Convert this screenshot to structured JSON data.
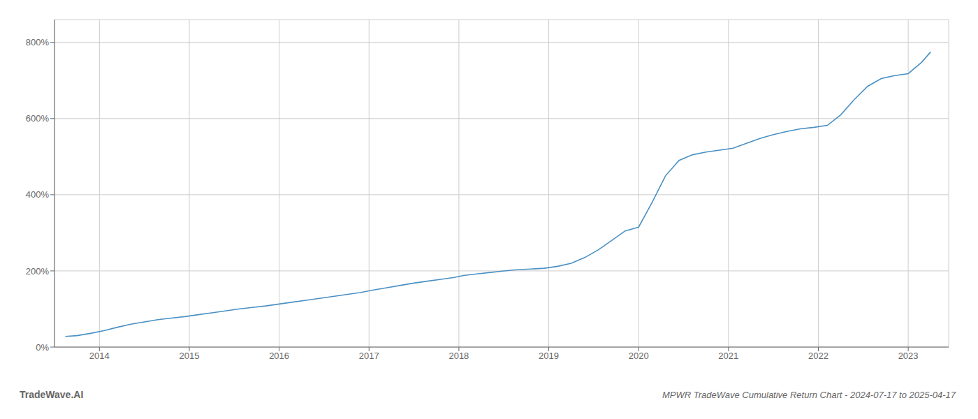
{
  "chart_data": {
    "type": "line",
    "title": "MPWR TradeWave Cumulative Return Chart - 2024-07-17 to 2025-04-17",
    "annotations": [
      "TradeWave.AI"
    ],
    "x": [
      2013.62,
      2013.75,
      2013.9,
      2014.05,
      2014.2,
      2014.35,
      2014.5,
      2014.65,
      2014.8,
      2014.95,
      2015.1,
      2015.25,
      2015.4,
      2015.55,
      2015.7,
      2015.85,
      2016.0,
      2016.15,
      2016.3,
      2016.45,
      2016.6,
      2016.75,
      2016.9,
      2017.05,
      2017.2,
      2017.35,
      2017.5,
      2017.65,
      2017.8,
      2017.95,
      2018.05,
      2018.2,
      2018.35,
      2018.5,
      2018.65,
      2018.8,
      2018.95,
      2019.1,
      2019.25,
      2019.4,
      2019.55,
      2019.7,
      2019.85,
      2020.0,
      2020.15,
      2020.3,
      2020.45,
      2020.6,
      2020.75,
      2020.9,
      2021.05,
      2021.2,
      2021.35,
      2021.5,
      2021.65,
      2021.8,
      2021.95,
      2022.1,
      2022.25,
      2022.4,
      2022.55,
      2022.7,
      2022.85,
      2023.0,
      2023.15,
      2023.25
    ],
    "values": [
      28,
      30,
      36,
      43,
      52,
      60,
      66,
      72,
      76,
      80,
      85,
      90,
      95,
      100,
      104,
      108,
      113,
      118,
      123,
      128,
      133,
      138,
      143,
      150,
      156,
      162,
      168,
      173,
      178,
      183,
      188,
      192,
      196,
      200,
      203,
      205,
      207,
      212,
      220,
      235,
      255,
      280,
      305,
      315,
      380,
      450,
      490,
      505,
      512,
      517,
      522,
      535,
      548,
      558,
      566,
      573,
      577,
      582,
      610,
      650,
      685,
      705,
      713,
      718,
      748,
      775
    ],
    "color": "#4a90c4",
    "xlim": [
      2013.5,
      2023.45
    ],
    "xticks": [
      2014,
      2015,
      2016,
      2017,
      2018,
      2019,
      2020,
      2021,
      2022,
      2023
    ],
    "ylim": [
      0,
      860
    ],
    "yticks": [
      {
        "value": 0,
        "label": "0%"
      },
      {
        "value": 200,
        "label": "200%"
      },
      {
        "value": 400,
        "label": "400%"
      },
      {
        "value": 600,
        "label": "600%"
      },
      {
        "value": 800,
        "label": "800%"
      }
    ],
    "grid": true
  }
}
